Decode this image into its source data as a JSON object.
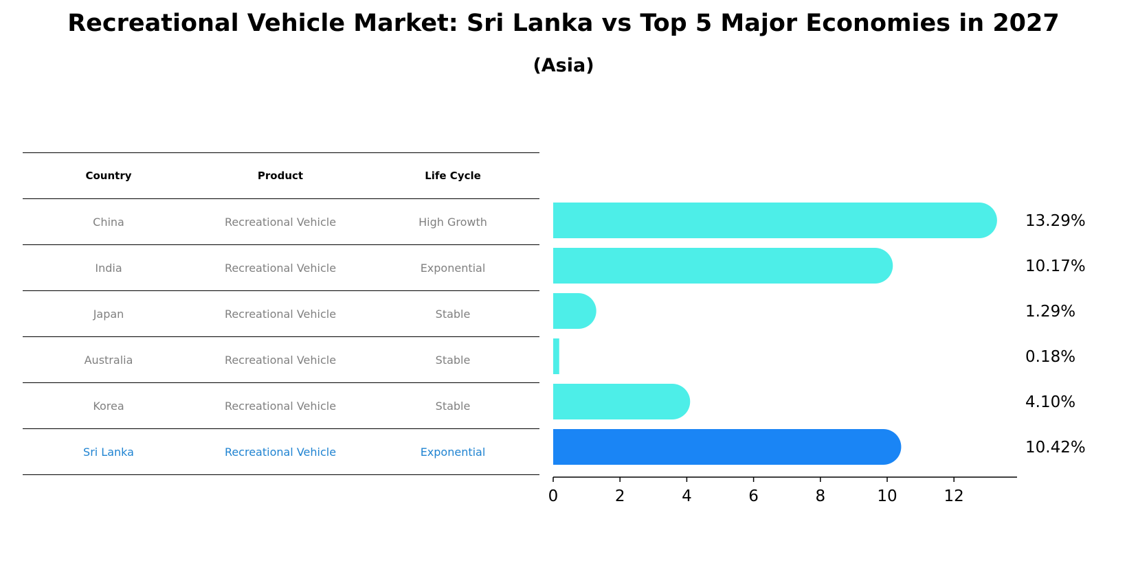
{
  "title": "Recreational Vehicle Market: Sri Lanka vs Top 5 Major Economies in 2027",
  "subtitle": "(Asia)",
  "table": {
    "headers": [
      "Country",
      "Product",
      "Life Cycle"
    ],
    "rows": [
      {
        "country": "China",
        "product": "Recreational Vehicle",
        "life_cycle": "High Growth"
      },
      {
        "country": "India",
        "product": "Recreational Vehicle",
        "life_cycle": "Exponential"
      },
      {
        "country": "Japan",
        "product": "Recreational Vehicle",
        "life_cycle": "Stable"
      },
      {
        "country": "Australia",
        "product": "Recreational Vehicle",
        "life_cycle": "Stable"
      },
      {
        "country": "Korea",
        "product": "Recreational Vehicle",
        "life_cycle": "Stable"
      },
      {
        "country": "Sri Lanka",
        "product": "Recreational Vehicle",
        "life_cycle": "Exponential"
      }
    ]
  },
  "colors": {
    "bar": "#4deee8",
    "highlight_bar": "#1a85f5",
    "highlight_text": "#1f83d1",
    "muted_text": "#808080"
  },
  "chart_data": {
    "type": "bar",
    "orientation": "horizontal",
    "categories": [
      "China",
      "India",
      "Japan",
      "Australia",
      "Korea",
      "Sri Lanka"
    ],
    "values": [
      13.29,
      10.17,
      1.29,
      0.18,
      4.1,
      10.42
    ],
    "value_labels": [
      "13.29%",
      "10.17%",
      "1.29%",
      "0.18%",
      "4.10%",
      "10.42%"
    ],
    "highlight": "Sri Lanka",
    "xlim": [
      0,
      13.9
    ],
    "xticks": [
      0,
      2,
      4,
      6,
      8,
      10,
      12
    ],
    "xlabel": "",
    "ylabel": ""
  }
}
